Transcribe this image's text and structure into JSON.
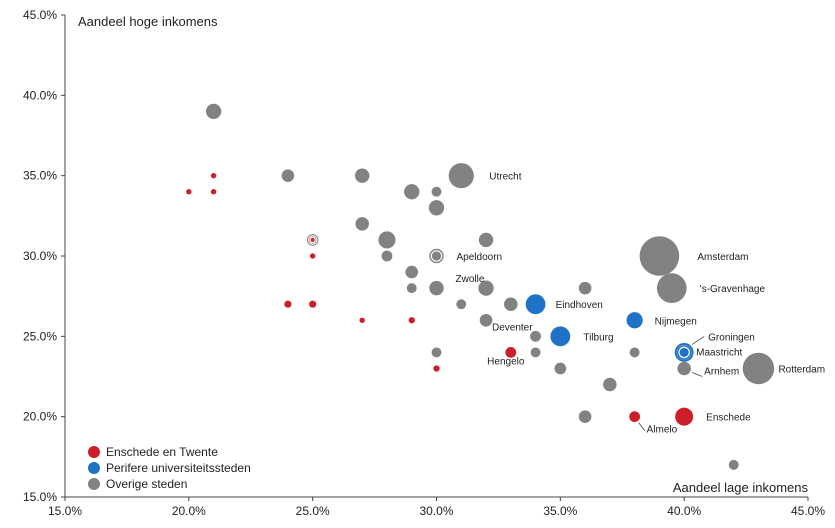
{
  "colors": {
    "twente": "#cc1f2a",
    "university": "#1f73c6",
    "other": "#828282",
    "axis": "#444444"
  },
  "chart_data": {
    "type": "scatter",
    "subtype": "bubble",
    "xlabel": "Aandeel lage inkomens",
    "ylabel": "Aandeel hoge inkomens",
    "xlim": [
      15,
      45
    ],
    "ylim": [
      15,
      45
    ],
    "x_ticks": [
      "15.0%",
      "20.0%",
      "25.0%",
      "30.0%",
      "35.0%",
      "40.0%",
      "45.0%"
    ],
    "y_ticks": [
      "15.0%",
      "20.0%",
      "25.0%",
      "30.0%",
      "35.0%",
      "40.0%",
      "45.0%"
    ],
    "grid": false,
    "legend_position": "bottom-left",
    "legend": [
      {
        "key": "twente",
        "label": "Enschede en Twente"
      },
      {
        "key": "university",
        "label": "Perifere universiteitssteden"
      },
      {
        "key": "other",
        "label": "Overige steden"
      }
    ],
    "points": [
      {
        "x": 20,
        "y": 34,
        "size": 0.3,
        "group": "twente"
      },
      {
        "x": 21,
        "y": 35,
        "size": 0.3,
        "group": "twente"
      },
      {
        "x": 21,
        "y": 34,
        "size": 0.3,
        "group": "twente"
      },
      {
        "x": 25,
        "y": 31,
        "size": 0.4,
        "group": "twente",
        "ring": true
      },
      {
        "x": 25,
        "y": 30,
        "size": 0.3,
        "group": "twente"
      },
      {
        "x": 24,
        "y": 27,
        "size": 0.4,
        "group": "twente"
      },
      {
        "x": 25,
        "y": 27,
        "size": 0.4,
        "group": "twente"
      },
      {
        "x": 27,
        "y": 26,
        "size": 0.3,
        "group": "twente"
      },
      {
        "x": 29,
        "y": 26,
        "size": 0.35,
        "group": "twente"
      },
      {
        "x": 30,
        "y": 23,
        "size": 0.35,
        "group": "twente"
      },
      {
        "x": 33,
        "y": 24,
        "size": 0.6,
        "group": "twente",
        "label": "Hengelo"
      },
      {
        "x": 38,
        "y": 20,
        "size": 0.6,
        "group": "twente",
        "label": "Almelo"
      },
      {
        "x": 40,
        "y": 20,
        "size": 1.0,
        "group": "twente",
        "label": "Enschede"
      },
      {
        "x": 34,
        "y": 27,
        "size": 1.1,
        "group": "university",
        "label": "Eindhoven"
      },
      {
        "x": 35,
        "y": 25,
        "size": 1.1,
        "group": "university",
        "label": "Tilburg"
      },
      {
        "x": 38,
        "y": 26,
        "size": 0.9,
        "group": "university",
        "label": "Nijmegen"
      },
      {
        "x": 40,
        "y": 24,
        "size": 1.05,
        "group": "university",
        "label": "Groningen",
        "ring": true
      },
      {
        "x": 40,
        "y": 24,
        "size": 0.8,
        "group": "university",
        "label": "Maastricht",
        "ring": true
      },
      {
        "x": 21,
        "y": 39,
        "size": 0.85,
        "group": "other"
      },
      {
        "x": 24,
        "y": 35,
        "size": 0.7,
        "group": "other"
      },
      {
        "x": 27,
        "y": 35,
        "size": 0.8,
        "group": "other"
      },
      {
        "x": 29,
        "y": 34,
        "size": 0.85,
        "group": "other"
      },
      {
        "x": 30,
        "y": 34,
        "size": 0.55,
        "group": "other"
      },
      {
        "x": 30,
        "y": 33,
        "size": 0.85,
        "group": "other"
      },
      {
        "x": 31,
        "y": 35,
        "size": 1.4,
        "group": "other",
        "label": "Utrecht"
      },
      {
        "x": 27,
        "y": 32,
        "size": 0.75,
        "group": "other"
      },
      {
        "x": 28,
        "y": 31,
        "size": 0.95,
        "group": "other"
      },
      {
        "x": 28,
        "y": 30,
        "size": 0.6,
        "group": "other"
      },
      {
        "x": 25,
        "y": 31,
        "size": 0.65,
        "group": "other",
        "ring": true
      },
      {
        "x": 30,
        "y": 30,
        "size": 0.8,
        "group": "other",
        "label": "Apeldoorn",
        "ring": true
      },
      {
        "x": 29,
        "y": 29,
        "size": 0.7,
        "group": "other"
      },
      {
        "x": 29,
        "y": 28,
        "size": 0.55,
        "group": "other"
      },
      {
        "x": 30,
        "y": 28,
        "size": 0.8,
        "group": "other",
        "label": "Zwolle"
      },
      {
        "x": 32,
        "y": 31,
        "size": 0.8,
        "group": "other"
      },
      {
        "x": 31,
        "y": 27,
        "size": 0.55,
        "group": "other"
      },
      {
        "x": 32,
        "y": 28,
        "size": 0.85,
        "group": "other"
      },
      {
        "x": 33,
        "y": 27,
        "size": 0.75,
        "group": "other"
      },
      {
        "x": 32,
        "y": 26,
        "size": 0.7,
        "group": "other"
      },
      {
        "x": 34,
        "y": 25,
        "size": 0.6,
        "group": "other",
        "label": "Deventer"
      },
      {
        "x": 34,
        "y": 24,
        "size": 0.55,
        "group": "other"
      },
      {
        "x": 35,
        "y": 23,
        "size": 0.65,
        "group": "other"
      },
      {
        "x": 36,
        "y": 28,
        "size": 0.7,
        "group": "other"
      },
      {
        "x": 37,
        "y": 22,
        "size": 0.75,
        "group": "other"
      },
      {
        "x": 36,
        "y": 20,
        "size": 0.7,
        "group": "other"
      },
      {
        "x": 38,
        "y": 24,
        "size": 0.55,
        "group": "other"
      },
      {
        "x": 30,
        "y": 24,
        "size": 0.55,
        "group": "other"
      },
      {
        "x": 39,
        "y": 30,
        "size": 2.2,
        "group": "other",
        "label": "Amsterdam"
      },
      {
        "x": 39.5,
        "y": 28,
        "size": 1.65,
        "group": "other",
        "label": "'s-Gravenhage"
      },
      {
        "x": 43,
        "y": 23,
        "size": 1.75,
        "group": "other",
        "label": "Rotterdam"
      },
      {
        "x": 40,
        "y": 23,
        "size": 0.75,
        "group": "other",
        "label": "Arnhem"
      },
      {
        "x": 42,
        "y": 17,
        "size": 0.55,
        "group": "other"
      }
    ]
  }
}
